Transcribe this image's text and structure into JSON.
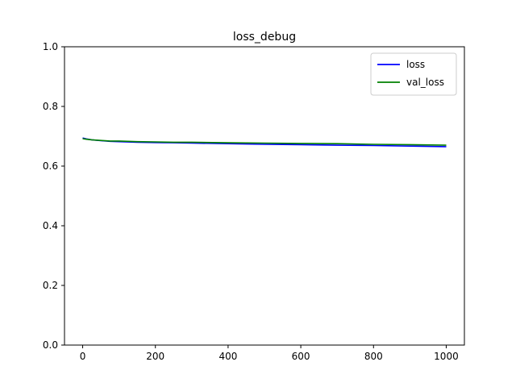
{
  "chart_data": {
    "type": "line",
    "title": "loss_debug",
    "xlabel": "",
    "ylabel": "",
    "xlim": [
      -50,
      1050
    ],
    "ylim": [
      0.0,
      1.0
    ],
    "xticks": [
      "0",
      "200",
      "400",
      "600",
      "800",
      "1000"
    ],
    "yticks": [
      "0.0",
      "0.2",
      "0.4",
      "0.6",
      "0.8",
      "1.0"
    ],
    "grid": false,
    "legend_position": "top-right",
    "series": [
      {
        "name": "loss",
        "color": "#0000ff",
        "x": [
          0,
          10,
          25,
          50,
          75,
          100,
          150,
          200,
          250,
          300,
          400,
          500,
          600,
          700,
          800,
          900,
          1000
        ],
        "y": [
          0.694,
          0.691,
          0.688,
          0.685,
          0.683,
          0.682,
          0.68,
          0.679,
          0.678,
          0.677,
          0.675,
          0.673,
          0.672,
          0.67,
          0.669,
          0.667,
          0.665
        ]
      },
      {
        "name": "val_loss",
        "color": "#008000",
        "x": [
          0,
          10,
          25,
          50,
          75,
          100,
          150,
          200,
          250,
          300,
          400,
          500,
          600,
          700,
          800,
          900,
          1000
        ],
        "y": [
          0.692,
          0.69,
          0.688,
          0.686,
          0.684,
          0.684,
          0.682,
          0.681,
          0.68,
          0.68,
          0.678,
          0.677,
          0.676,
          0.675,
          0.673,
          0.672,
          0.67
        ]
      }
    ]
  }
}
